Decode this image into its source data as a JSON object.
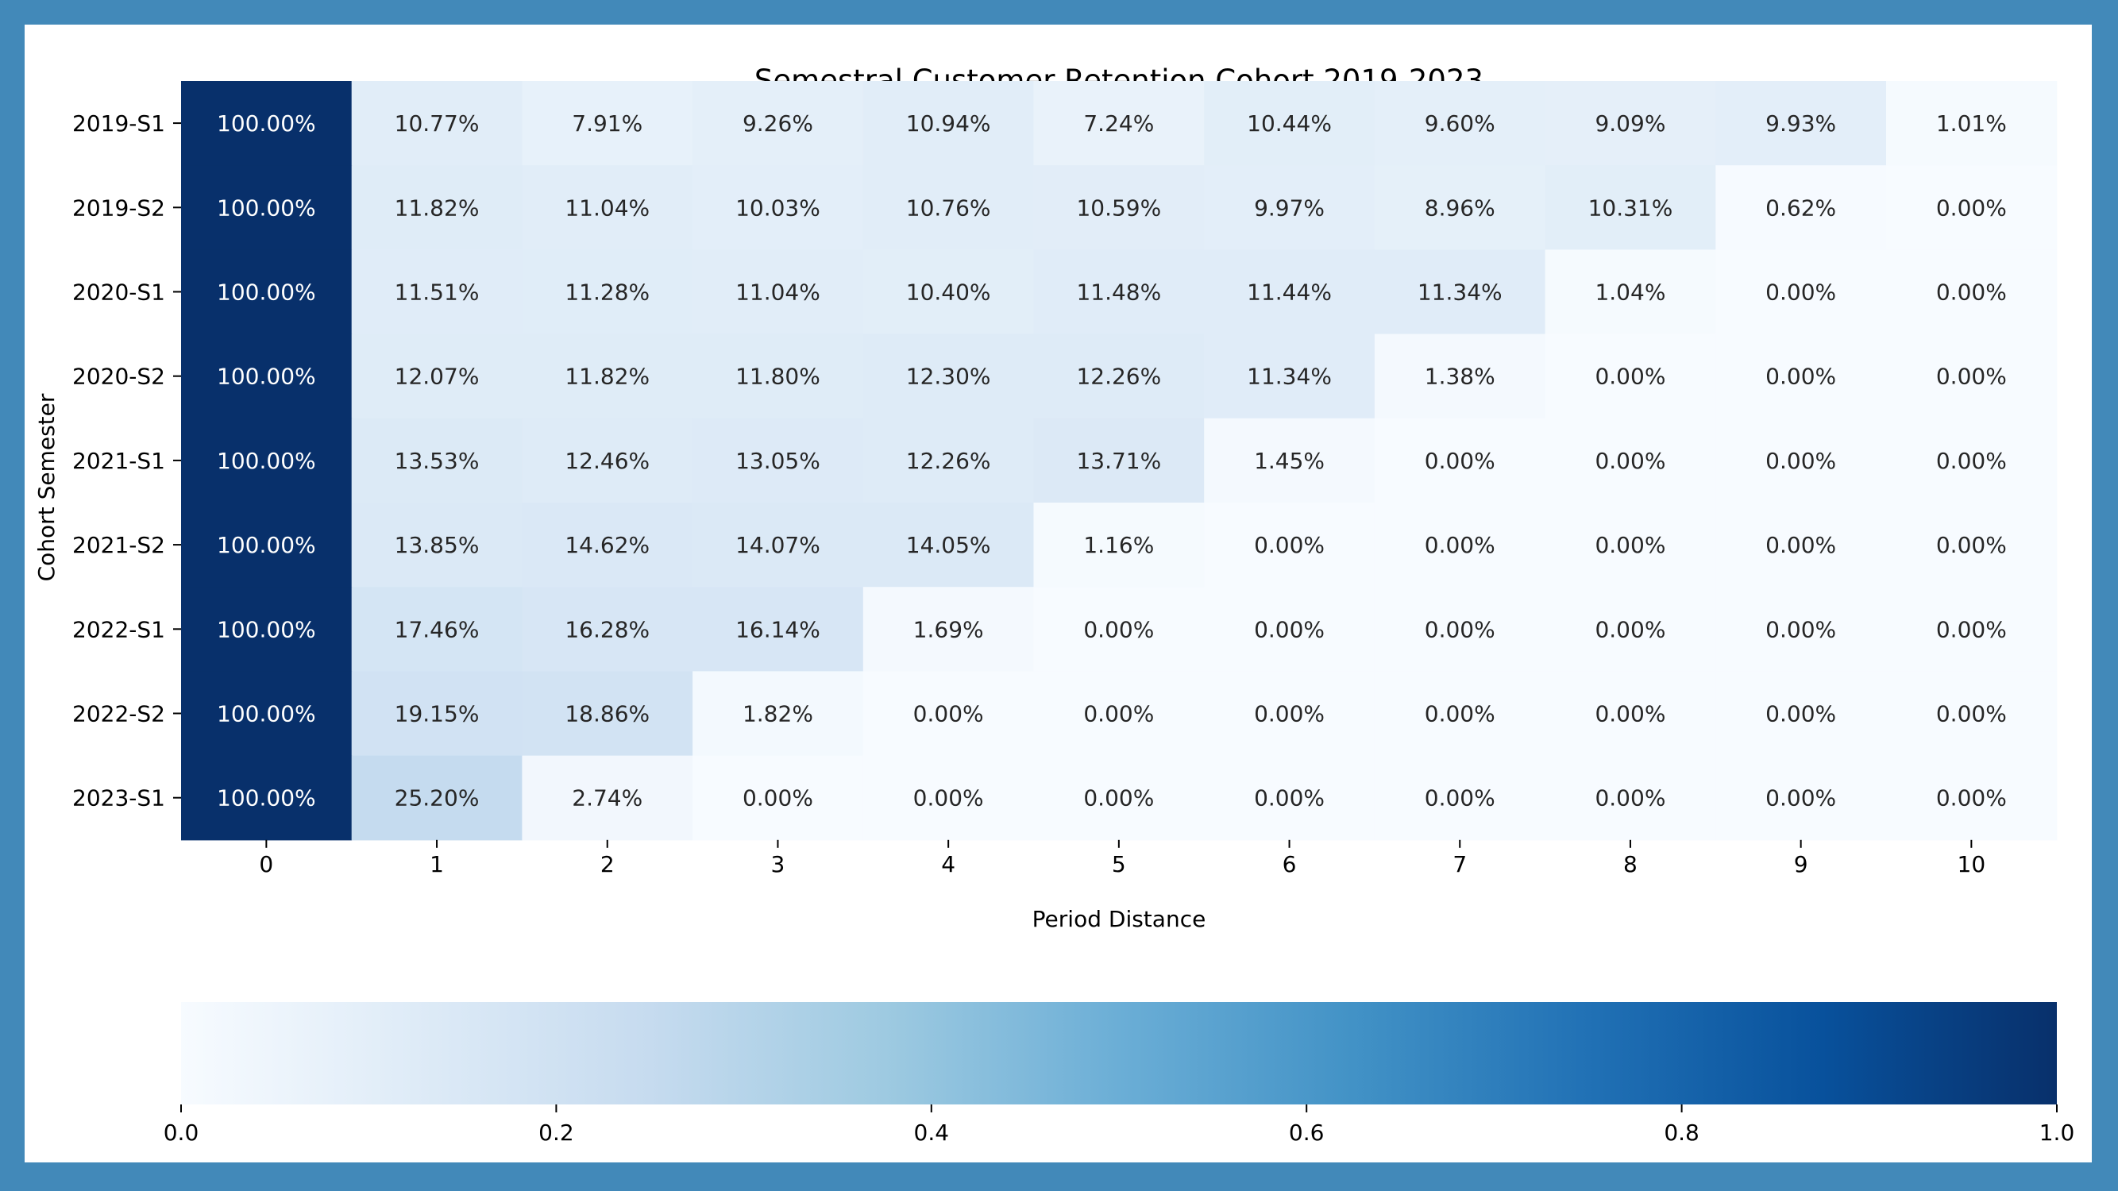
{
  "chart_data": {
    "type": "heatmap",
    "title": "Semestral Customer Retention Cohort 2019-2023",
    "xlabel": "Period Distance",
    "ylabel": "Cohort Semester",
    "x": [
      0,
      1,
      2,
      3,
      4,
      5,
      6,
      7,
      8,
      9,
      10
    ],
    "y": [
      "2019-S1",
      "2019-S2",
      "2020-S1",
      "2020-S2",
      "2021-S1",
      "2021-S2",
      "2022-S1",
      "2022-S2",
      "2023-S1"
    ],
    "values": [
      [
        100.0,
        10.77,
        7.91,
        9.26,
        10.94,
        7.24,
        10.44,
        9.6,
        9.09,
        9.93,
        1.01
      ],
      [
        100.0,
        11.82,
        11.04,
        10.03,
        10.76,
        10.59,
        9.97,
        8.96,
        10.31,
        0.62,
        0.0
      ],
      [
        100.0,
        11.51,
        11.28,
        11.04,
        10.4,
        11.48,
        11.44,
        11.34,
        1.04,
        0.0,
        0.0
      ],
      [
        100.0,
        12.07,
        11.82,
        11.8,
        12.3,
        12.26,
        11.34,
        1.38,
        0.0,
        0.0,
        0.0
      ],
      [
        100.0,
        13.53,
        12.46,
        13.05,
        12.26,
        13.71,
        1.45,
        0.0,
        0.0,
        0.0,
        0.0
      ],
      [
        100.0,
        13.85,
        14.62,
        14.07,
        14.05,
        1.16,
        0.0,
        0.0,
        0.0,
        0.0,
        0.0
      ],
      [
        100.0,
        17.46,
        16.28,
        16.14,
        1.69,
        0.0,
        0.0,
        0.0,
        0.0,
        0.0,
        0.0
      ],
      [
        100.0,
        19.15,
        18.86,
        1.82,
        0.0,
        0.0,
        0.0,
        0.0,
        0.0,
        0.0,
        0.0
      ],
      [
        100.0,
        25.2,
        2.74,
        0.0,
        0.0,
        0.0,
        0.0,
        0.0,
        0.0,
        0.0,
        0.0
      ]
    ],
    "value_format": "percent",
    "colormap": "Blues",
    "colorbar": {
      "orientation": "horizontal",
      "placement": "bottom",
      "range": [
        0.0,
        1.0
      ],
      "ticks": [
        "0.0",
        "0.2",
        "0.4",
        "0.6",
        "0.8",
        "1.0"
      ]
    },
    "grid": false,
    "frame_color": "#4289b9"
  }
}
